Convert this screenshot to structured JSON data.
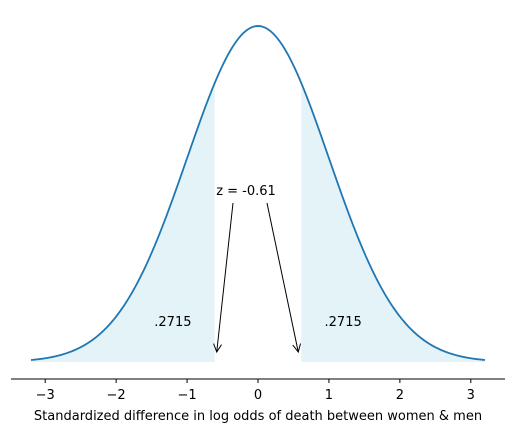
{
  "chart_data": {
    "type": "area",
    "distribution": "standard-normal",
    "xlabel": "Standardized difference in log odds of death between women & men",
    "ylabel": "",
    "xlim": [
      -3.2,
      3.2
    ],
    "x_ticks": [
      -3,
      -2,
      -1,
      0,
      1,
      2,
      3
    ],
    "x_tick_labels": [
      "−3",
      "−2",
      "−1",
      "0",
      "1",
      "2",
      "3"
    ],
    "y_axis_visible": false,
    "grid": false,
    "z_value": -0.61,
    "z_label": "z = -0.61",
    "shaded_regions": [
      {
        "from": -3.2,
        "to": -0.61,
        "area_label": ".2715"
      },
      {
        "from": 0.61,
        "to": 3.2,
        "area_label": ".2715"
      }
    ],
    "colors": {
      "curve": "#1f77b4",
      "fill": "#e4f3f8",
      "axis": "#000000"
    }
  }
}
